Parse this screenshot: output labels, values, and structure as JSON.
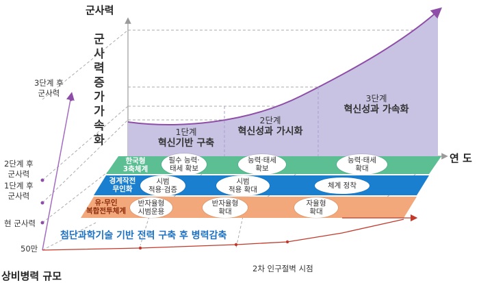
{
  "axes": {
    "y_title": "군사력",
    "x_title": "연 도",
    "z_title": "상비병력 규모",
    "y_vertical": "군사력 증가 가속화"
  },
  "y_levels": {
    "after3": "3단계 후\n군사력",
    "after2": "2단계 후\n군사력",
    "after1": "1단계 후\n군사력",
    "current": "현 군사력",
    "troops": "50만"
  },
  "stages": [
    {
      "step": "1단계",
      "title": "혁신기반 구축"
    },
    {
      "step": "2단계",
      "title": "혁신성과 가시화"
    },
    {
      "step": "3단계",
      "title": "혁신성과 가속화"
    }
  ],
  "bands": [
    {
      "label": "한국형\n3축체계",
      "color": "#5cbf94",
      "text_color": "#ffffff",
      "items": [
        "필수 능력·\n태세 확보",
        "능력·태세\n확보",
        "능력·태세\n확대"
      ]
    },
    {
      "label": "경계작전\n무인화",
      "color": "#1b7fcf",
      "text_color": "#ffffff",
      "items": [
        "시범\n적용·검증",
        "시범\n적용 확대",
        "체계 정착"
      ]
    },
    {
      "label": "유·무인\n복합전투체계",
      "color": "#f2a87a",
      "text_color": "#8a2a0a",
      "items": [
        "반자율형\n시범운용",
        "반자율형\n확대",
        "자율형\n확대"
      ]
    }
  ],
  "caption": "첨단과학기술 기반 전력 구축 후 병력감축",
  "bottom_note": "2차 인구절벽 시점",
  "colors": {
    "capability_fill": "#c9c3e3",
    "curve": "#8e4ea8",
    "troop_line": "#c0392b",
    "caption": "#1e72c2"
  }
}
